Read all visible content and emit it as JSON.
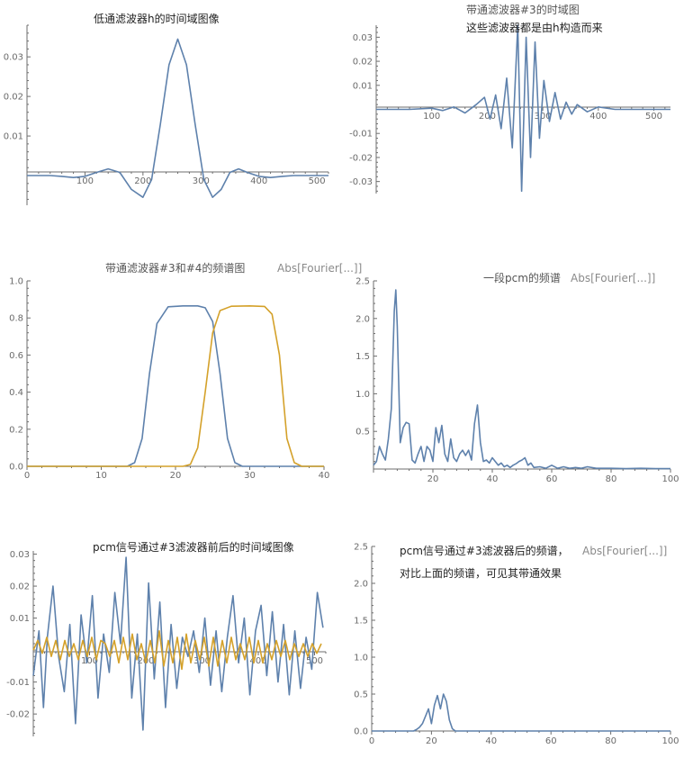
{
  "chart_data": [
    {
      "type": "line",
      "title": "低通滤波器h的时间域图像",
      "xticks": [
        "100",
        "200",
        "300",
        "400",
        "500"
      ],
      "yticks": [
        "0.01",
        "0.02",
        "0.03"
      ],
      "xlim": [
        0,
        520
      ],
      "ylim": [
        -0.0075,
        0.038
      ],
      "series": [
        {
          "color": "#5e81ac",
          "x": [
            0,
            20,
            40,
            60,
            80,
            100,
            120,
            140,
            160,
            180,
            200,
            215,
            230,
            245,
            260,
            275,
            290,
            305,
            320,
            335,
            350,
            365,
            380,
            400,
            420,
            440,
            460,
            480,
            500,
            520
          ],
          "y": [
            0,
            0,
            0,
            -0.0002,
            -0.0005,
            -0.0002,
            0.0008,
            0.0017,
            0.0008,
            -0.0035,
            -0.0055,
            -0.001,
            0.013,
            0.028,
            0.0345,
            0.028,
            0.013,
            -0.001,
            -0.0055,
            -0.0035,
            0.0008,
            0.0017,
            0.0008,
            -0.0002,
            -0.0005,
            -0.0002,
            0,
            0,
            0,
            0
          ]
        }
      ]
    },
    {
      "type": "line",
      "title": "带通滤波器#3的时域图",
      "subtitle": "这些滤波器都是由h构造而来",
      "xticks": [
        "100",
        "200",
        "300",
        "400",
        "500"
      ],
      "yticks": [
        "-0.03",
        "-0.02",
        "-0.01",
        "0.01",
        "0.02",
        "0.03"
      ],
      "xlim": [
        0,
        530
      ],
      "ylim": [
        -0.035,
        0.035
      ],
      "series": [
        {
          "color": "#5e81ac",
          "x": [
            0,
            60,
            100,
            120,
            140,
            160,
            180,
            195,
            205,
            215,
            225,
            235,
            245,
            255,
            262,
            270,
            278,
            286,
            294,
            302,
            312,
            322,
            332,
            342,
            352,
            362,
            380,
            400,
            430,
            530
          ],
          "y": [
            0,
            0,
            0.0005,
            -0.0005,
            0.001,
            -0.0015,
            0.002,
            0.005,
            -0.004,
            0.006,
            -0.008,
            0.013,
            -0.016,
            0.035,
            -0.034,
            0.03,
            -0.02,
            0.028,
            -0.012,
            0.012,
            -0.005,
            0.007,
            -0.004,
            0.003,
            -0.002,
            0.002,
            -0.001,
            0.001,
            0,
            0
          ]
        }
      ]
    },
    {
      "type": "line",
      "title": "带通滤波器#3和#4的频谱图",
      "subtitle": "Abs[Fourier[...]]",
      "xticks": [
        "0",
        "10",
        "20",
        "30",
        "40"
      ],
      "yticks": [
        "0.0",
        "0.2",
        "0.4",
        "0.6",
        "0.8",
        "1.0"
      ],
      "xlim": [
        0,
        40
      ],
      "ylim": [
        0,
        1.0
      ],
      "series": [
        {
          "color": "#5e81ac",
          "x": [
            0,
            13.5,
            14.5,
            15.5,
            16.5,
            17.5,
            19,
            21,
            23,
            24,
            25,
            26,
            27,
            28,
            29,
            40
          ],
          "y": [
            0,
            0,
            0.02,
            0.15,
            0.5,
            0.77,
            0.86,
            0.865,
            0.865,
            0.855,
            0.78,
            0.5,
            0.15,
            0.02,
            0,
            0
          ]
        },
        {
          "color": "#d4a12a",
          "x": [
            0,
            21,
            22,
            23,
            24,
            25,
            26,
            27.5,
            30,
            32,
            33,
            34,
            35,
            36,
            37,
            40
          ],
          "y": [
            0,
            0,
            0.01,
            0.1,
            0.4,
            0.72,
            0.84,
            0.863,
            0.865,
            0.862,
            0.82,
            0.6,
            0.15,
            0.02,
            0,
            0
          ]
        }
      ]
    },
    {
      "type": "line",
      "title": "一段pcm的频谱",
      "subtitle": "Abs[Fourier[...]]",
      "xticks": [
        "20",
        "40",
        "60",
        "80",
        "100"
      ],
      "yticks": [
        "0.5",
        "1.0",
        "1.5",
        "2.0",
        "2.5"
      ],
      "xlim": [
        0,
        100
      ],
      "ylim": [
        0,
        2.5
      ],
      "series": [
        {
          "color": "#5e81ac",
          "x": [
            0,
            1,
            2,
            3,
            4,
            5,
            6,
            7,
            7.5,
            8,
            9,
            10,
            11,
            12,
            13,
            14,
            15,
            16,
            17,
            18,
            19,
            20,
            21,
            22,
            23,
            24,
            25,
            26,
            27,
            28,
            29,
            30,
            31,
            32,
            33,
            34,
            35,
            36,
            37,
            38,
            39,
            40,
            41,
            42,
            43,
            44,
            45,
            46,
            47,
            48,
            49,
            50,
            51,
            52,
            53,
            54,
            56,
            58,
            60,
            62,
            64,
            66,
            68,
            70,
            72,
            75,
            80,
            85,
            90,
            95,
            100
          ],
          "y": [
            0.05,
            0.1,
            0.3,
            0.2,
            0.12,
            0.4,
            0.8,
            2.1,
            2.38,
            1.9,
            0.35,
            0.55,
            0.62,
            0.6,
            0.12,
            0.08,
            0.2,
            0.3,
            0.1,
            0.3,
            0.25,
            0.1,
            0.55,
            0.35,
            0.58,
            0.2,
            0.1,
            0.4,
            0.15,
            0.1,
            0.2,
            0.25,
            0.18,
            0.25,
            0.12,
            0.6,
            0.85,
            0.35,
            0.1,
            0.12,
            0.08,
            0.15,
            0.1,
            0.05,
            0.08,
            0.03,
            0.05,
            0.02,
            0.05,
            0.07,
            0.1,
            0.12,
            0.15,
            0.05,
            0.08,
            0.02,
            0.03,
            0.01,
            0.05,
            0.01,
            0.03,
            0.01,
            0.02,
            0.01,
            0.03,
            0.01,
            0.01,
            0.005,
            0.01,
            0.005,
            0.005
          ]
        }
      ]
    },
    {
      "type": "line",
      "title": "pcm信号通过#3滤波器前后的时间域图像",
      "xticks": [
        "100",
        "200",
        "300",
        "400",
        "500"
      ],
      "yticks": [
        "-0.02",
        "-0.01",
        "0.01",
        "0.02",
        "0.03"
      ],
      "xlim": [
        0,
        520
      ],
      "ylim": [
        -0.027,
        0.031
      ],
      "series": [
        {
          "color": "#5e81ac",
          "x": [
            0,
            10,
            18,
            25,
            35,
            45,
            55,
            65,
            75,
            85,
            95,
            105,
            115,
            125,
            135,
            145,
            155,
            165,
            175,
            185,
            195,
            205,
            215,
            225,
            235,
            245,
            255,
            265,
            275,
            285,
            295,
            305,
            315,
            325,
            335,
            345,
            355,
            365,
            375,
            385,
            395,
            405,
            415,
            425,
            435,
            445,
            455,
            465,
            475,
            485,
            495,
            505,
            515
          ],
          "y": [
            -0.008,
            0.006,
            -0.018,
            0.004,
            0.02,
            -0.002,
            -0.013,
            0.008,
            -0.023,
            0.011,
            -0.004,
            0.017,
            -0.015,
            0.005,
            -0.007,
            0.018,
            0.002,
            0.029,
            -0.015,
            0.005,
            -0.025,
            0.021,
            -0.009,
            0.015,
            -0.018,
            0.008,
            -0.012,
            0.004,
            -0.002,
            0.006,
            -0.007,
            0.01,
            -0.011,
            0.006,
            -0.013,
            0.004,
            0.017,
            -0.004,
            0.01,
            -0.014,
            0.006,
            0.014,
            -0.008,
            0.012,
            -0.01,
            0.008,
            -0.014,
            0.006,
            -0.012,
            0.004,
            -0.006,
            0.018,
            0.007
          ]
        },
        {
          "color": "#d4a12a",
          "x": [
            0,
            8,
            16,
            24,
            32,
            40,
            48,
            56,
            64,
            72,
            80,
            88,
            96,
            104,
            112,
            120,
            128,
            136,
            144,
            152,
            160,
            168,
            176,
            184,
            192,
            200,
            208,
            216,
            224,
            232,
            240,
            248,
            256,
            264,
            272,
            280,
            288,
            296,
            304,
            312,
            320,
            328,
            336,
            344,
            352,
            360,
            368,
            376,
            384,
            392,
            400,
            408,
            416,
            424,
            432,
            440,
            448,
            456,
            464,
            472,
            480,
            488,
            496,
            504,
            512
          ],
          "y": [
            0,
            0.003,
            -0.001,
            0.004,
            -0.002,
            0.003,
            -0.003,
            0.003,
            -0.002,
            0.002,
            -0.003,
            0.003,
            -0.002,
            0.004,
            -0.003,
            0.003,
            0.002,
            -0.002,
            0.003,
            -0.004,
            0.004,
            -0.003,
            0.005,
            -0.003,
            0.002,
            -0.004,
            0.003,
            -0.004,
            0.006,
            -0.005,
            0.003,
            -0.004,
            0.004,
            -0.006,
            0.005,
            -0.004,
            0.003,
            -0.003,
            0.004,
            -0.005,
            0.004,
            -0.005,
            0.003,
            -0.004,
            0.004,
            -0.003,
            0.002,
            -0.003,
            0.004,
            -0.004,
            0.003,
            -0.004,
            0.002,
            -0.003,
            0.003,
            -0.002,
            0.003,
            -0.003,
            0.002,
            -0.002,
            0.002,
            -0.002,
            0.002,
            -0.001,
            0.002
          ]
        }
      ]
    },
    {
      "type": "line",
      "title": "pcm信号通过#3滤波器后的频谱，",
      "subtitle": "Abs[Fourier[...]]",
      "note": "对比上面的频谱，可见其带通效果",
      "xticks": [
        "0",
        "20",
        "40",
        "60",
        "80",
        "100"
      ],
      "yticks": [
        "0.0",
        "0.5",
        "1.0",
        "1.5",
        "2.0",
        "2.5"
      ],
      "xlim": [
        0,
        100
      ],
      "ylim": [
        0,
        2.5
      ],
      "series": [
        {
          "color": "#5e81ac",
          "x": [
            0,
            14,
            15,
            16,
            17,
            18,
            19,
            20,
            21,
            22,
            23,
            24,
            25,
            26,
            27,
            28,
            40,
            100
          ],
          "y": [
            0,
            0,
            0.02,
            0.05,
            0.1,
            0.2,
            0.3,
            0.1,
            0.35,
            0.48,
            0.3,
            0.5,
            0.4,
            0.15,
            0.03,
            0,
            0,
            0
          ]
        }
      ]
    }
  ]
}
